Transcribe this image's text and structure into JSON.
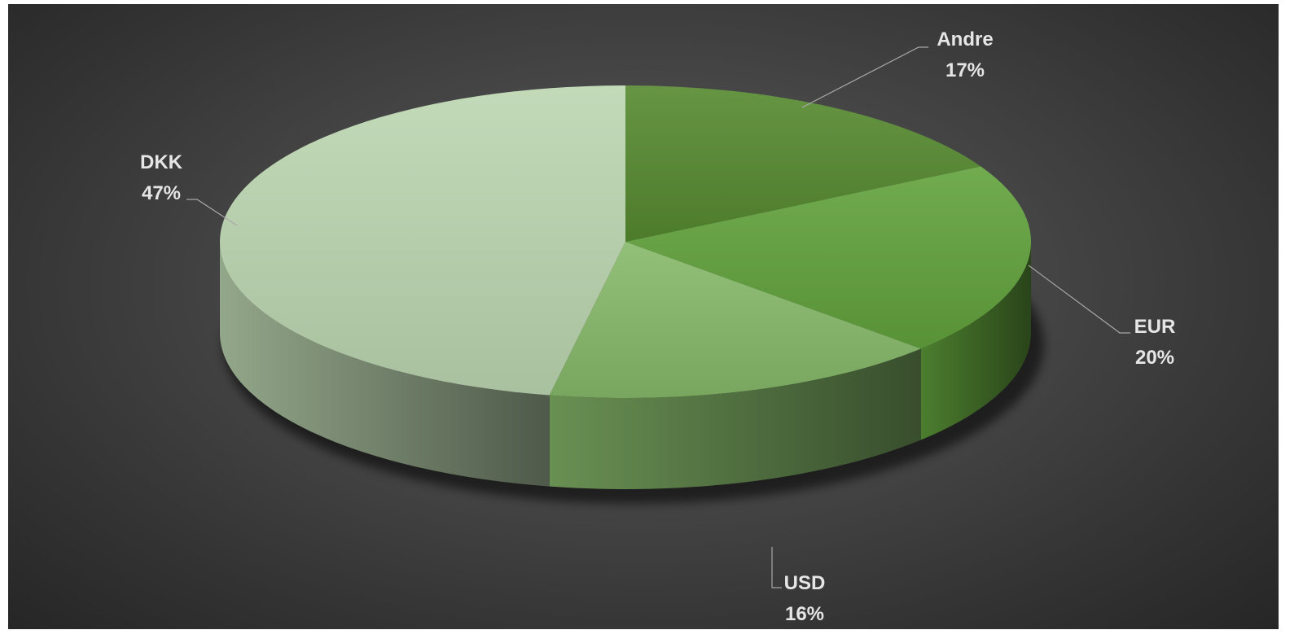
{
  "chart_data": {
    "type": "pie",
    "style": "3d",
    "title": "",
    "slices": [
      {
        "label": "Andre",
        "value": 17,
        "percent_label": "17%",
        "color": "#55892f"
      },
      {
        "label": "EUR",
        "value": 20,
        "percent_label": "20%",
        "color": "#62a23c"
      },
      {
        "label": "USD",
        "value": 16,
        "percent_label": "16%",
        "color": "#86b96a"
      },
      {
        "label": "DKK",
        "value": 47,
        "percent_label": "47%",
        "color": "#bcd6b1"
      }
    ],
    "background": "#3a3a3a",
    "label_color": "#e6e6e6"
  }
}
